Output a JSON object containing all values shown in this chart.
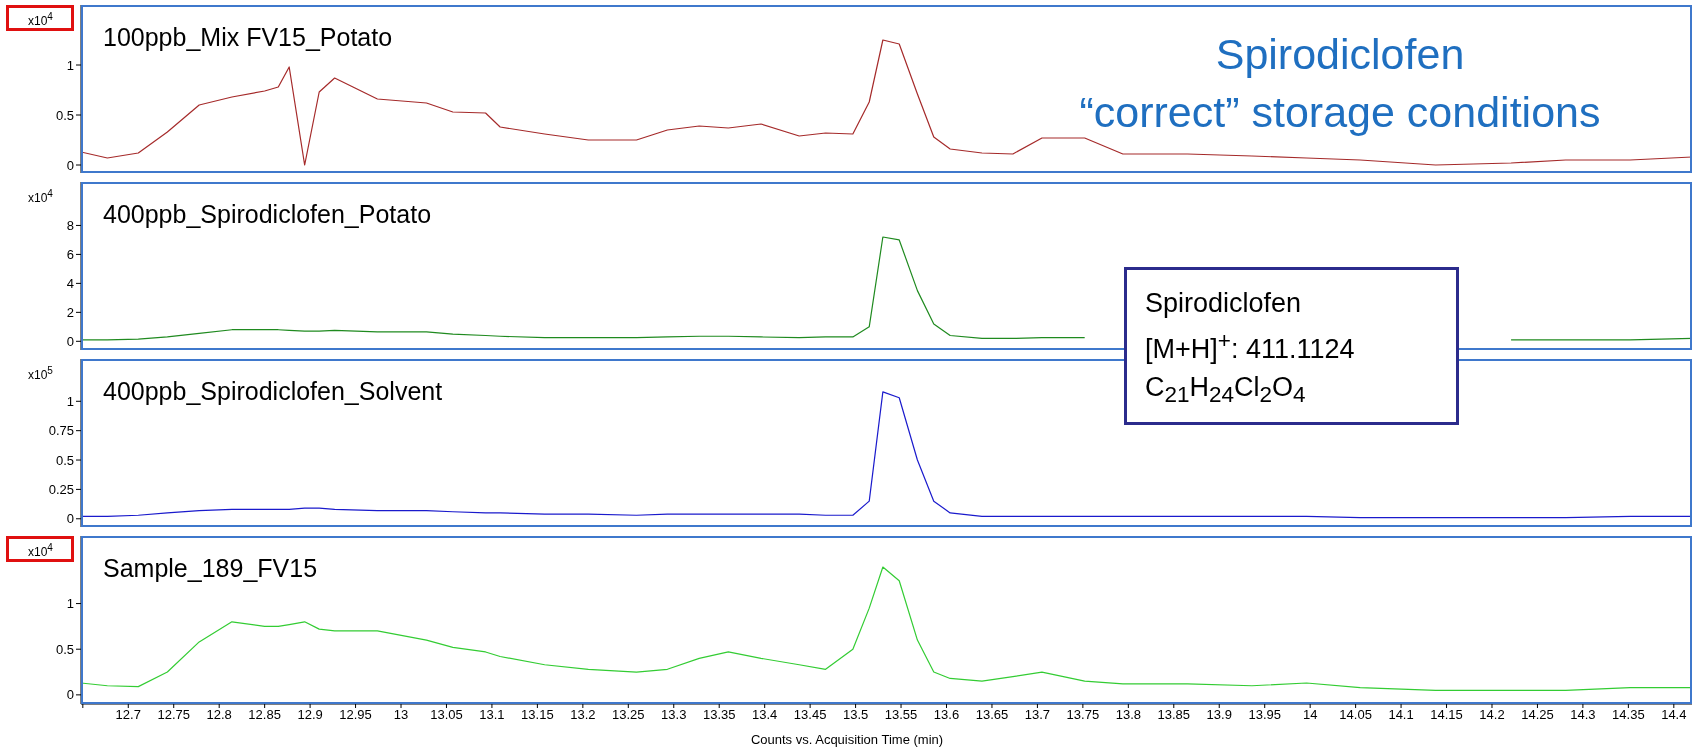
{
  "chart_data": [
    {
      "type": "line",
      "title": "100ppb_Mix FV15_Potato",
      "ylabel": "x10$^{4}$",
      "annotations": [
        "Spirodiclofen",
        "“correct” storage conditions"
      ],
      "tick_labels": "y",
      "xlim": [
        12.648,
        14.42
      ],
      "ylim": [
        -0.08,
        1.6
      ],
      "yticks": [
        0,
        0.5,
        1
      ],
      "x": [
        12.648,
        12.677,
        12.711,
        12.743,
        12.778,
        12.814,
        12.85,
        12.865,
        12.877,
        12.894,
        12.91,
        12.927,
        12.974,
        13.028,
        13.057,
        13.093,
        13.109,
        13.158,
        13.206,
        13.259,
        13.293,
        13.328,
        13.36,
        13.396,
        13.438,
        13.467,
        13.497,
        13.515,
        13.53,
        13.548,
        13.568,
        13.586,
        13.604,
        13.639,
        13.673,
        13.705,
        13.752,
        13.794,
        13.865,
        13.936,
        13.996,
        14.055,
        14.138,
        14.221,
        14.281,
        14.352,
        14.42
      ],
      "series": [
        {
          "color": "#a52a2a",
          "values": [
            0.13,
            0.07,
            0.12,
            0.33,
            0.6,
            0.68,
            0.74,
            0.78,
            0.98,
            0,
            0.73,
            0.87,
            0.66,
            0.62,
            0.53,
            0.52,
            0.38,
            0.31,
            0.25,
            0.25,
            0.35,
            0.39,
            0.37,
            0.41,
            0.29,
            0.32,
            0.31,
            0.63,
            1.25,
            1.21,
            0.71,
            0.28,
            0.16,
            0.12,
            0.11,
            0.27,
            0.27,
            0.11,
            0.11,
            0.09,
            0.07,
            0.05,
            0,
            0.02,
            0.05,
            0.05,
            0.08
          ]
        }
      ]
    },
    {
      "type": "line",
      "title": "400ppb_Spirodiclofen_Potato",
      "ylabel": "x10$^{4}$",
      "annotations": [
        "Spirodiclofen",
        "[M+H]$^{+}$: 411.1124",
        "C$_{21}$H$_{24}$Cl$_{2}$O$_{4}$"
      ],
      "tick_labels": "y",
      "xlim": [
        12.648,
        14.42
      ],
      "ylim": [
        -0.6,
        11
      ],
      "yticks": [
        0,
        2,
        4,
        6,
        8
      ],
      "x": [
        12.648,
        12.677,
        12.711,
        12.743,
        12.778,
        12.814,
        12.85,
        12.865,
        12.877,
        12.894,
        12.91,
        12.927,
        12.974,
        13.028,
        13.057,
        13.093,
        13.109,
        13.158,
        13.206,
        13.259,
        13.293,
        13.328,
        13.36,
        13.396,
        13.438,
        13.467,
        13.497,
        13.515,
        13.53,
        13.548,
        13.568,
        13.586,
        13.604,
        13.639,
        13.673,
        13.705,
        13.752,
        13.794,
        13.865,
        13.936,
        13.996,
        14.055,
        14.138,
        14.221,
        14.281,
        14.352,
        14.42
      ],
      "series": [
        {
          "color": "#1f8a1f",
          "values": [
            0.1,
            0.1,
            0.15,
            0.3,
            0.55,
            0.8,
            0.8,
            0.8,
            0.75,
            0.7,
            0.7,
            0.75,
            0.65,
            0.65,
            0.5,
            0.4,
            0.35,
            0.25,
            0.25,
            0.25,
            0.3,
            0.35,
            0.35,
            0.3,
            0.25,
            0.3,
            0.3,
            1,
            7.2,
            7,
            3.5,
            1.2,
            0.4,
            0.2,
            0.2,
            0.25,
            0.25,
            null,
            null,
            null,
            null,
            null,
            null,
            0.1,
            0.1,
            0.1,
            0.2
          ]
        }
      ]
    },
    {
      "type": "line",
      "title": "400ppb_Spirodiclofen_Solvent",
      "ylabel": "x10$^{5}$",
      "tick_labels": "y",
      "xlim": [
        12.648,
        14.42
      ],
      "ylim": [
        -0.07,
        1.36
      ],
      "yticks": [
        0,
        0.25,
        0.5,
        0.75,
        1
      ],
      "x": [
        12.648,
        12.677,
        12.711,
        12.743,
        12.778,
        12.814,
        12.85,
        12.865,
        12.877,
        12.894,
        12.91,
        12.927,
        12.974,
        13.028,
        13.057,
        13.093,
        13.109,
        13.158,
        13.206,
        13.259,
        13.293,
        13.328,
        13.36,
        13.396,
        13.438,
        13.467,
        13.497,
        13.515,
        13.53,
        13.548,
        13.568,
        13.586,
        13.604,
        13.639,
        13.673,
        13.705,
        13.752,
        13.794,
        13.865,
        13.936,
        13.996,
        14.055,
        14.138,
        14.221,
        14.281,
        14.352,
        14.42
      ],
      "series": [
        {
          "color": "#1a1acc",
          "values": [
            0.02,
            0.02,
            0.03,
            0.05,
            0.07,
            0.08,
            0.08,
            0.08,
            0.08,
            0.09,
            0.09,
            0.08,
            0.07,
            0.07,
            0.06,
            0.05,
            0.05,
            0.04,
            0.04,
            0.03,
            0.04,
            0.04,
            0.04,
            0.04,
            0.04,
            0.03,
            0.03,
            0.15,
            1.08,
            1.03,
            0.5,
            0.15,
            0.05,
            0.02,
            0.02,
            0.02,
            0.02,
            0.02,
            0.02,
            0.02,
            0.02,
            0.01,
            0.01,
            0.01,
            0.01,
            0.02,
            0.02
          ]
        }
      ]
    },
    {
      "type": "line",
      "title": "Sample_189_FV15",
      "ylabel": "x10$^{4}$",
      "xlabel": "Counts vs. Acquisition Time (min)",
      "xlim": [
        12.648,
        14.42
      ],
      "ylim": [
        -0.1,
        1.74
      ],
      "yticks": [
        0,
        0.5,
        1
      ],
      "xticks": [
        {
          "value": 12.65,
          "label": null
        },
        12.7,
        12.75,
        12.8,
        12.85,
        12.9,
        12.95,
        13,
        13.05,
        13.1,
        13.15,
        13.2,
        13.25,
        13.3,
        13.35,
        13.4,
        13.45,
        13.5,
        13.55,
        13.6,
        13.65,
        13.7,
        13.75,
        13.8,
        13.85,
        13.9,
        13.95,
        14,
        14.05,
        14.1,
        14.15,
        14.2,
        14.25,
        14.3,
        14.35,
        14.4
      ],
      "x": [
        12.648,
        12.677,
        12.711,
        12.743,
        12.778,
        12.814,
        12.85,
        12.865,
        12.877,
        12.894,
        12.91,
        12.927,
        12.974,
        13.028,
        13.057,
        13.093,
        13.109,
        13.158,
        13.206,
        13.259,
        13.293,
        13.328,
        13.36,
        13.396,
        13.438,
        13.467,
        13.497,
        13.515,
        13.53,
        13.548,
        13.568,
        13.586,
        13.604,
        13.639,
        13.673,
        13.705,
        13.752,
        13.794,
        13.865,
        13.936,
        13.996,
        14.055,
        14.138,
        14.221,
        14.281,
        14.352,
        14.42
      ],
      "series": [
        {
          "color": "#33cc33",
          "values": [
            0.13,
            0.1,
            0.09,
            0.25,
            0.58,
            0.8,
            0.75,
            0.75,
            0.77,
            0.8,
            0.72,
            0.7,
            0.7,
            0.6,
            0.52,
            0.47,
            0.42,
            0.33,
            0.28,
            0.25,
            0.28,
            0.4,
            0.47,
            0.4,
            0.33,
            0.28,
            0.5,
            0.95,
            1.4,
            1.25,
            0.6,
            0.25,
            0.18,
            0.15,
            0.2,
            0.25,
            0.15,
            0.12,
            0.12,
            0.1,
            0.13,
            0.08,
            0.05,
            0.05,
            0.05,
            0.08,
            0.08
          ]
        }
      ]
    }
  ]
}
